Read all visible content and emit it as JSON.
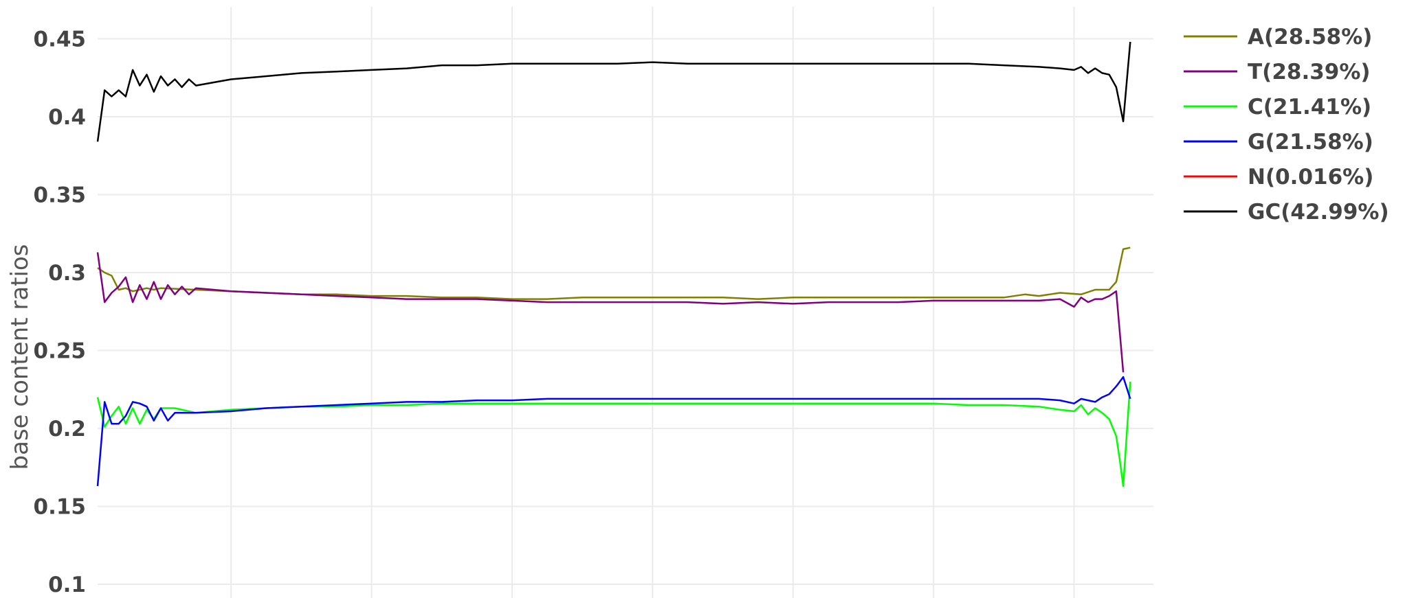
{
  "chart_data": {
    "type": "line",
    "ylabel": "base content ratios",
    "ylim": [
      0.1,
      0.47
    ],
    "yticks": [
      "0.45",
      "0.4",
      "0.35",
      "0.3",
      "0.25",
      "0.2",
      "0.15",
      "0.1"
    ],
    "ytick_values": [
      0.45,
      0.4,
      0.35,
      0.3,
      0.25,
      0.2,
      0.15,
      0.1
    ],
    "xlim": [
      1,
      151
    ],
    "x_gridlines": [
      20,
      40,
      60,
      80,
      100,
      120,
      140
    ],
    "grid": true,
    "legend_position": "top-right",
    "series": [
      {
        "name": "A(28.58%)",
        "color": "#808000",
        "points": [
          [
            1,
            0.303
          ],
          [
            2,
            0.3
          ],
          [
            3,
            0.298
          ],
          [
            4,
            0.289
          ],
          [
            5,
            0.29
          ],
          [
            6,
            0.288
          ],
          [
            7,
            0.289
          ],
          [
            8,
            0.29
          ],
          [
            9,
            0.289
          ],
          [
            10,
            0.29
          ],
          [
            15,
            0.289
          ],
          [
            20,
            0.288
          ],
          [
            25,
            0.287
          ],
          [
            30,
            0.286
          ],
          [
            35,
            0.286
          ],
          [
            40,
            0.285
          ],
          [
            45,
            0.285
          ],
          [
            50,
            0.284
          ],
          [
            55,
            0.284
          ],
          [
            60,
            0.283
          ],
          [
            65,
            0.283
          ],
          [
            70,
            0.284
          ],
          [
            75,
            0.284
          ],
          [
            80,
            0.284
          ],
          [
            85,
            0.284
          ],
          [
            90,
            0.284
          ],
          [
            95,
            0.283
          ],
          [
            100,
            0.284
          ],
          [
            105,
            0.284
          ],
          [
            110,
            0.284
          ],
          [
            115,
            0.284
          ],
          [
            120,
            0.284
          ],
          [
            125,
            0.284
          ],
          [
            130,
            0.284
          ],
          [
            133,
            0.286
          ],
          [
            135,
            0.285
          ],
          [
            138,
            0.287
          ],
          [
            141,
            0.286
          ],
          [
            143,
            0.289
          ],
          [
            145,
            0.289
          ],
          [
            146,
            0.294
          ],
          [
            147,
            0.315
          ],
          [
            148,
            0.316
          ]
        ]
      },
      {
        "name": "T(28.39%)",
        "color": "#800080",
        "points": [
          [
            1,
            0.313
          ],
          [
            2,
            0.281
          ],
          [
            3,
            0.287
          ],
          [
            4,
            0.291
          ],
          [
            5,
            0.297
          ],
          [
            6,
            0.281
          ],
          [
            7,
            0.292
          ],
          [
            8,
            0.283
          ],
          [
            9,
            0.294
          ],
          [
            10,
            0.283
          ],
          [
            11,
            0.292
          ],
          [
            12,
            0.286
          ],
          [
            13,
            0.291
          ],
          [
            14,
            0.286
          ],
          [
            15,
            0.29
          ],
          [
            20,
            0.288
          ],
          [
            25,
            0.287
          ],
          [
            30,
            0.286
          ],
          [
            35,
            0.285
          ],
          [
            40,
            0.284
          ],
          [
            45,
            0.283
          ],
          [
            50,
            0.283
          ],
          [
            55,
            0.283
          ],
          [
            60,
            0.282
          ],
          [
            65,
            0.281
          ],
          [
            70,
            0.281
          ],
          [
            75,
            0.281
          ],
          [
            80,
            0.281
          ],
          [
            85,
            0.281
          ],
          [
            90,
            0.28
          ],
          [
            95,
            0.281
          ],
          [
            100,
            0.28
          ],
          [
            105,
            0.281
          ],
          [
            110,
            0.281
          ],
          [
            115,
            0.281
          ],
          [
            120,
            0.282
          ],
          [
            125,
            0.282
          ],
          [
            130,
            0.282
          ],
          [
            135,
            0.282
          ],
          [
            138,
            0.283
          ],
          [
            140,
            0.278
          ],
          [
            141,
            0.284
          ],
          [
            142,
            0.281
          ],
          [
            143,
            0.283
          ],
          [
            144,
            0.283
          ],
          [
            145,
            0.285
          ],
          [
            146,
            0.288
          ],
          [
            147,
            0.236
          ]
        ]
      },
      {
        "name": "C(21.41%)",
        "color": "#00ff00",
        "points": [
          [
            1,
            0.22
          ],
          [
            2,
            0.201
          ],
          [
            3,
            0.208
          ],
          [
            4,
            0.214
          ],
          [
            5,
            0.203
          ],
          [
            6,
            0.213
          ],
          [
            7,
            0.203
          ],
          [
            8,
            0.212
          ],
          [
            9,
            0.206
          ],
          [
            10,
            0.213
          ],
          [
            12,
            0.213
          ],
          [
            15,
            0.21
          ],
          [
            20,
            0.212
          ],
          [
            25,
            0.213
          ],
          [
            30,
            0.214
          ],
          [
            35,
            0.214
          ],
          [
            40,
            0.215
          ],
          [
            45,
            0.215
          ],
          [
            50,
            0.216
          ],
          [
            55,
            0.216
          ],
          [
            60,
            0.216
          ],
          [
            65,
            0.216
          ],
          [
            70,
            0.216
          ],
          [
            75,
            0.216
          ],
          [
            80,
            0.216
          ],
          [
            85,
            0.216
          ],
          [
            90,
            0.216
          ],
          [
            95,
            0.216
          ],
          [
            100,
            0.216
          ],
          [
            105,
            0.216
          ],
          [
            110,
            0.216
          ],
          [
            115,
            0.216
          ],
          [
            120,
            0.216
          ],
          [
            125,
            0.215
          ],
          [
            130,
            0.215
          ],
          [
            135,
            0.214
          ],
          [
            138,
            0.212
          ],
          [
            140,
            0.211
          ],
          [
            141,
            0.215
          ],
          [
            142,
            0.209
          ],
          [
            143,
            0.213
          ],
          [
            144,
            0.21
          ],
          [
            145,
            0.206
          ],
          [
            146,
            0.195
          ],
          [
            146.5,
            0.18
          ],
          [
            147,
            0.163
          ],
          [
            148,
            0.23
          ]
        ]
      },
      {
        "name": "G(21.58%)",
        "color": "#0000ff",
        "points": [
          [
            1,
            0.163
          ],
          [
            2,
            0.217
          ],
          [
            3,
            0.203
          ],
          [
            4,
            0.203
          ],
          [
            5,
            0.208
          ],
          [
            6,
            0.217
          ],
          [
            7,
            0.216
          ],
          [
            8,
            0.214
          ],
          [
            9,
            0.205
          ],
          [
            10,
            0.213
          ],
          [
            11,
            0.205
          ],
          [
            12,
            0.21
          ],
          [
            15,
            0.21
          ],
          [
            20,
            0.211
          ],
          [
            25,
            0.213
          ],
          [
            30,
            0.214
          ],
          [
            35,
            0.215
          ],
          [
            40,
            0.216
          ],
          [
            45,
            0.217
          ],
          [
            50,
            0.217
          ],
          [
            55,
            0.218
          ],
          [
            60,
            0.218
          ],
          [
            65,
            0.219
          ],
          [
            70,
            0.219
          ],
          [
            75,
            0.219
          ],
          [
            80,
            0.219
          ],
          [
            85,
            0.219
          ],
          [
            90,
            0.219
          ],
          [
            95,
            0.219
          ],
          [
            100,
            0.219
          ],
          [
            105,
            0.219
          ],
          [
            110,
            0.219
          ],
          [
            115,
            0.219
          ],
          [
            120,
            0.219
          ],
          [
            125,
            0.219
          ],
          [
            130,
            0.219
          ],
          [
            135,
            0.219
          ],
          [
            138,
            0.218
          ],
          [
            140,
            0.216
          ],
          [
            141,
            0.219
          ],
          [
            142,
            0.218
          ],
          [
            143,
            0.217
          ],
          [
            144,
            0.22
          ],
          [
            145,
            0.222
          ],
          [
            146,
            0.227
          ],
          [
            147,
            0.233
          ],
          [
            148,
            0.219
          ]
        ]
      },
      {
        "name": "N(0.016%)",
        "color": "#ff0000",
        "points": []
      },
      {
        "name": "GC(42.99%)",
        "color": "#000000",
        "points": [
          [
            1,
            0.384
          ],
          [
            2,
            0.417
          ],
          [
            3,
            0.413
          ],
          [
            4,
            0.417
          ],
          [
            5,
            0.413
          ],
          [
            6,
            0.43
          ],
          [
            7,
            0.42
          ],
          [
            8,
            0.427
          ],
          [
            9,
            0.416
          ],
          [
            10,
            0.426
          ],
          [
            11,
            0.42
          ],
          [
            12,
            0.424
          ],
          [
            13,
            0.419
          ],
          [
            14,
            0.424
          ],
          [
            15,
            0.42
          ],
          [
            20,
            0.424
          ],
          [
            25,
            0.426
          ],
          [
            30,
            0.428
          ],
          [
            35,
            0.429
          ],
          [
            40,
            0.43
          ],
          [
            45,
            0.431
          ],
          [
            50,
            0.433
          ],
          [
            55,
            0.433
          ],
          [
            60,
            0.434
          ],
          [
            65,
            0.434
          ],
          [
            70,
            0.434
          ],
          [
            75,
            0.434
          ],
          [
            80,
            0.435
          ],
          [
            85,
            0.434
          ],
          [
            90,
            0.434
          ],
          [
            95,
            0.434
          ],
          [
            100,
            0.434
          ],
          [
            105,
            0.434
          ],
          [
            110,
            0.434
          ],
          [
            115,
            0.434
          ],
          [
            120,
            0.434
          ],
          [
            125,
            0.434
          ],
          [
            130,
            0.433
          ],
          [
            135,
            0.432
          ],
          [
            138,
            0.431
          ],
          [
            140,
            0.43
          ],
          [
            141,
            0.432
          ],
          [
            142,
            0.428
          ],
          [
            143,
            0.431
          ],
          [
            144,
            0.428
          ],
          [
            145,
            0.427
          ],
          [
            146,
            0.419
          ],
          [
            147,
            0.397
          ],
          [
            148,
            0.448
          ]
        ]
      }
    ]
  }
}
